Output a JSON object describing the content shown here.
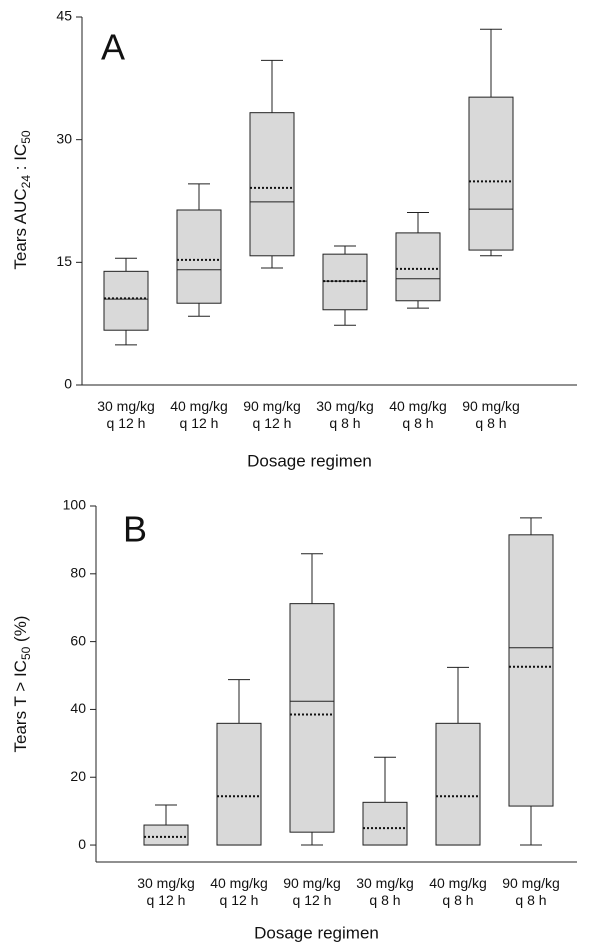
{
  "chart_data": [
    {
      "type": "box",
      "panel_label": "A",
      "y_label": [
        "Tears AUC",
        "24",
        " : IC",
        "50"
      ],
      "x_label": "Dosage regimen",
      "categories": [
        [
          "30 mg/kg",
          "q 12 h"
        ],
        [
          "40 mg/kg",
          "q 12 h"
        ],
        [
          "90 mg/kg",
          "q 12 h"
        ],
        [
          "30 mg/kg",
          "q 8 h"
        ],
        [
          "40 mg/kg",
          "q 8 h"
        ],
        [
          "90 mg/kg",
          "q 8 h"
        ]
      ],
      "whisker_low": [
        4.9,
        8.4,
        14.3,
        7.3,
        9.4,
        15.8
      ],
      "q1": [
        6.7,
        10.0,
        15.8,
        9.2,
        10.3,
        16.5
      ],
      "median": [
        10.5,
        14.1,
        22.4,
        12.7,
        13.0,
        21.5
      ],
      "q3": [
        13.9,
        21.4,
        33.3,
        16.0,
        18.6,
        35.2
      ],
      "whisker_high": [
        15.5,
        24.6,
        39.7,
        17.0,
        21.1,
        43.5
      ],
      "mean": [
        10.6,
        15.3,
        24.1,
        12.7,
        14.2,
        24.9
      ],
      "color": "#d9d9d9",
      "ylim": [
        0,
        45
      ],
      "yticks": [
        0,
        15,
        30,
        45
      ]
    },
    {
      "type": "box",
      "panel_label": "B",
      "y_label": [
        "Tears T > IC",
        "50",
        " (%)"
      ],
      "x_label": "Dosage regimen",
      "categories": [
        [
          "30 mg/kg",
          "q 12 h"
        ],
        [
          "40 mg/kg",
          "q 12 h"
        ],
        [
          "90 mg/kg",
          "q 12 h"
        ],
        [
          "30 mg/kg",
          "q 8 h"
        ],
        [
          "40 mg/kg",
          "q 8 h"
        ],
        [
          "90 mg/kg",
          "q 8 h"
        ]
      ],
      "whisker_low": [
        0,
        0,
        0,
        0,
        0,
        0
      ],
      "q1": [
        0,
        0,
        3.8,
        0,
        0,
        11.5
      ],
      "median": [
        0,
        0,
        42.4,
        0,
        0,
        58.2
      ],
      "q3": [
        5.9,
        35.9,
        71.2,
        12.6,
        35.9,
        91.5
      ],
      "whisker_high": [
        11.8,
        48.8,
        85.9,
        25.9,
        52.4,
        96.5
      ],
      "mean": [
        2.4,
        14.4,
        38.5,
        5.0,
        14.4,
        52.6
      ],
      "color": "#d9d9d9",
      "ylim": [
        -5,
        100
      ],
      "yticks": [
        0,
        20,
        40,
        60,
        80,
        100
      ]
    }
  ]
}
